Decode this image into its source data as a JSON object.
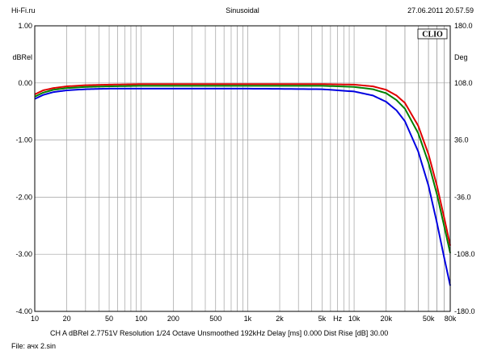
{
  "header": {
    "left": "Hi-Fi.ru",
    "center": "Sinusoidal",
    "right": "27.06.2011 20.57.59"
  },
  "watermark": "CLIO",
  "status": {
    "line": "CH A   dBRel 2.7751V   Resolution 1/24 Octave   Unsmoothed   192kHz   Delay [ms] 0.000   Dist Rise [dB] 30.00",
    "file": "File: ачх 2.sin"
  },
  "colors": {
    "background": "#ffffff",
    "grid": "#a0a0a0",
    "red": "#e00000",
    "green": "#008000",
    "blue": "#0000e0"
  },
  "chart_data": {
    "type": "line",
    "title": "Sinusoidal",
    "xlabel": "Hz",
    "ylabel": "dBRel",
    "y2label": "Deg",
    "xscale": "log",
    "xlim": [
      10,
      80000
    ],
    "ylim": [
      -4.0,
      1.0
    ],
    "y2lim": [
      -180.0,
      180.0
    ],
    "grid": true,
    "x_ticks": [
      {
        "v": 10,
        "label": "10"
      },
      {
        "v": 20,
        "label": "20"
      },
      {
        "v": 50,
        "label": "50"
      },
      {
        "v": 100,
        "label": "100"
      },
      {
        "v": 200,
        "label": "200"
      },
      {
        "v": 500,
        "label": "500"
      },
      {
        "v": 1000,
        "label": "1k"
      },
      {
        "v": 2000,
        "label": "2k"
      },
      {
        "v": 5000,
        "label": "5k"
      },
      {
        "v": 10000,
        "label": "10k"
      },
      {
        "v": 20000,
        "label": "20k"
      },
      {
        "v": 50000,
        "label": "50k"
      },
      {
        "v": 80000,
        "label": "80k"
      }
    ],
    "y_ticks": [
      {
        "v": 1.0,
        "label": "1.00"
      },
      {
        "v": 0.0,
        "label": "0.00"
      },
      {
        "v": -1.0,
        "label": "-1.00"
      },
      {
        "v": -2.0,
        "label": "-2.00"
      },
      {
        "v": -3.0,
        "label": "-3.00"
      },
      {
        "v": -4.0,
        "label": "-4.00"
      }
    ],
    "y2_ticks": [
      {
        "v": 180.0,
        "label": "180.0"
      },
      {
        "v": 108.0,
        "label": "108.0"
      },
      {
        "v": 36.0,
        "label": "36.0"
      },
      {
        "v": -36.0,
        "label": "-36.0"
      },
      {
        "v": -108.0,
        "label": "-108.0"
      },
      {
        "v": -180.0,
        "label": "-180.0"
      }
    ],
    "series": [
      {
        "color": "#e00000",
        "x": [
          10,
          12,
          15,
          20,
          30,
          50,
          100,
          1000,
          5000,
          10000,
          15000,
          20000,
          25000,
          30000,
          40000,
          50000,
          60000,
          70000,
          80000
        ],
        "y": [
          -0.2,
          -0.13,
          -0.09,
          -0.06,
          -0.04,
          -0.03,
          -0.02,
          -0.02,
          -0.02,
          -0.03,
          -0.06,
          -0.12,
          -0.22,
          -0.35,
          -0.75,
          -1.25,
          -1.8,
          -2.35,
          -2.85
        ]
      },
      {
        "color": "#008000",
        "x": [
          10,
          12,
          15,
          20,
          30,
          50,
          100,
          1000,
          5000,
          10000,
          15000,
          20000,
          25000,
          30000,
          40000,
          50000,
          60000,
          70000,
          80000
        ],
        "y": [
          -0.24,
          -0.17,
          -0.12,
          -0.09,
          -0.07,
          -0.06,
          -0.05,
          -0.05,
          -0.05,
          -0.07,
          -0.11,
          -0.18,
          -0.3,
          -0.45,
          -0.88,
          -1.4,
          -1.95,
          -2.5,
          -2.98
        ]
      },
      {
        "color": "#0000e0",
        "x": [
          10,
          12,
          15,
          20,
          30,
          50,
          100,
          1000,
          5000,
          10000,
          15000,
          20000,
          25000,
          30000,
          40000,
          50000,
          60000,
          70000,
          80000
        ],
        "y": [
          -0.28,
          -0.21,
          -0.16,
          -0.13,
          -0.11,
          -0.1,
          -0.1,
          -0.1,
          -0.11,
          -0.15,
          -0.22,
          -0.33,
          -0.48,
          -0.67,
          -1.2,
          -1.8,
          -2.45,
          -3.05,
          -3.55
        ]
      }
    ]
  }
}
